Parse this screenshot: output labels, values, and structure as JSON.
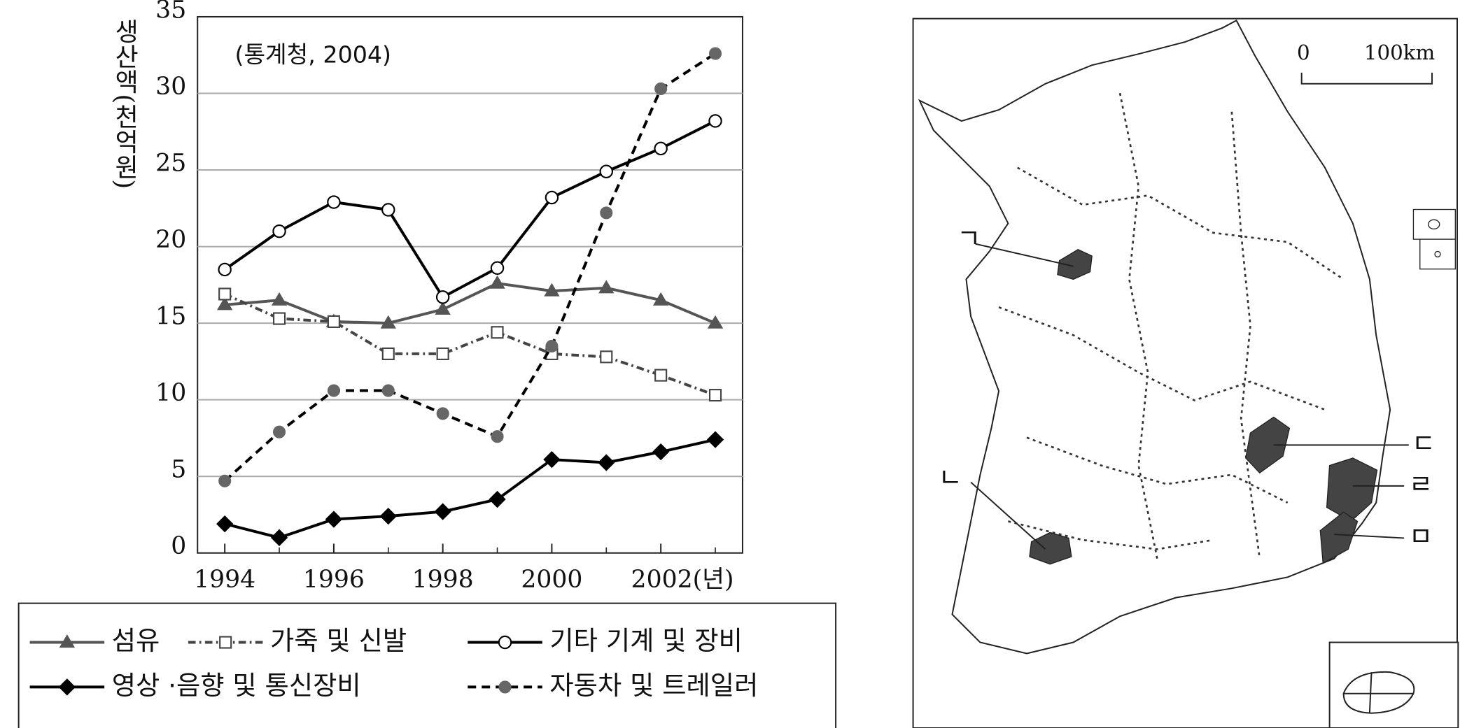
{
  "chart_data": {
    "type": "line",
    "y_label": "생산액(천억원)",
    "annotation": "(통계청, 2004)",
    "x": [
      1994,
      1995,
      1996,
      1997,
      1998,
      1999,
      2000,
      2001,
      2002,
      2003
    ],
    "xlim": [
      1993.5,
      2003.5
    ],
    "xticks": [
      1994,
      1996,
      1998,
      2000,
      {
        "value": 2002,
        "label": "2002(년)"
      }
    ],
    "xminorticks": [
      1995,
      1997,
      1999,
      2001,
      2003
    ],
    "ylim": [
      0,
      35
    ],
    "yticks": [
      0,
      5,
      10,
      15,
      20,
      25,
      30,
      35
    ],
    "grid": true,
    "series": [
      {
        "name": "섬유",
        "color": "#555555",
        "marker": "triangle",
        "dash": "solid",
        "values": [
          16.2,
          16.5,
          15.1,
          15.0,
          15.9,
          17.6,
          17.1,
          17.3,
          16.5,
          15.0
        ]
      },
      {
        "name": "가죽 및 신발",
        "color": "#444444",
        "marker": "square",
        "dash": "dashdot",
        "values": [
          16.9,
          15.3,
          15.1,
          13.0,
          13.0,
          14.4,
          13.0,
          12.8,
          11.6,
          10.3
        ]
      },
      {
        "name": "기타 기계 및 장비",
        "color": "#000000",
        "marker": "circle",
        "dash": "solid",
        "values": [
          18.5,
          21.0,
          22.9,
          22.4,
          16.7,
          18.6,
          23.2,
          24.9,
          26.4,
          28.2
        ]
      },
      {
        "name": "영상 ·음향 및 통신장비",
        "color": "#000000",
        "marker": "diamond",
        "dash": "solid",
        "values": [
          1.9,
          1.0,
          2.2,
          2.4,
          2.7,
          3.5,
          6.1,
          5.9,
          6.6,
          7.4
        ]
      },
      {
        "name": "자동차 및 트레일러",
        "color": "#000000",
        "marker": "dot",
        "dash": "dashed",
        "values": [
          4.7,
          7.9,
          10.6,
          10.6,
          9.1,
          7.6,
          13.5,
          22.2,
          30.3,
          32.6
        ]
      }
    ]
  },
  "map": {
    "scale_labels": [
      "0",
      "100km"
    ],
    "region_labels": [
      "ㄱ",
      "ㄴ",
      "ㄷ",
      "ㄹ",
      "ㅁ"
    ]
  }
}
